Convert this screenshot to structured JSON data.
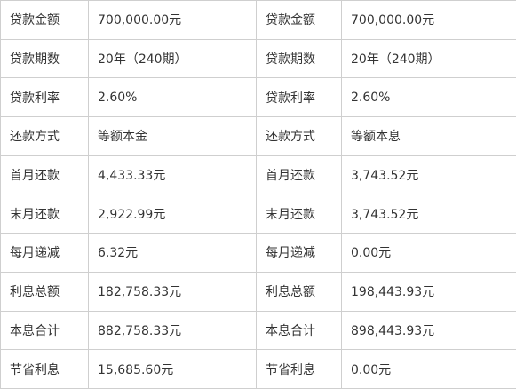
{
  "rows": [
    {
      "label_left": "贷款金额",
      "value_left": "700,000.00元",
      "label_right": "贷款金额",
      "value_right": "700,000.00元"
    },
    {
      "label_left": "贷款期数",
      "value_left": "20年（240期）",
      "label_right": "贷款期数",
      "value_right": "20年（240期）"
    },
    {
      "label_left": "贷款利率",
      "value_left": "2.60%",
      "label_right": "贷款利率",
      "value_right": "2.60%"
    },
    {
      "label_left": "还款方式",
      "value_left": "等额本金",
      "label_right": "还款方式",
      "value_right": "等额本息"
    },
    {
      "label_left": "首月还款",
      "value_left": "4,433.33元",
      "label_right": "首月还款",
      "value_right": "3,743.52元"
    },
    {
      "label_left": "末月还款",
      "value_left": "2,922.99元",
      "label_right": "末月还款",
      "value_right": "3,743.52元"
    },
    {
      "label_left": "每月递减",
      "value_left": "6.32元",
      "label_right": "每月递减",
      "value_right": "0.00元"
    },
    {
      "label_left": "利息总额",
      "value_left": "182,758.33元",
      "label_right": "利息总额",
      "value_right": "198,443.93元"
    },
    {
      "label_left": "本息合计",
      "value_left": "882,758.33元",
      "label_right": "本息合计",
      "value_right": "898,443.93元"
    },
    {
      "label_left": "节省利息",
      "value_left": "15,685.60元",
      "label_right": "节省利息",
      "value_right": "0.00元"
    }
  ]
}
